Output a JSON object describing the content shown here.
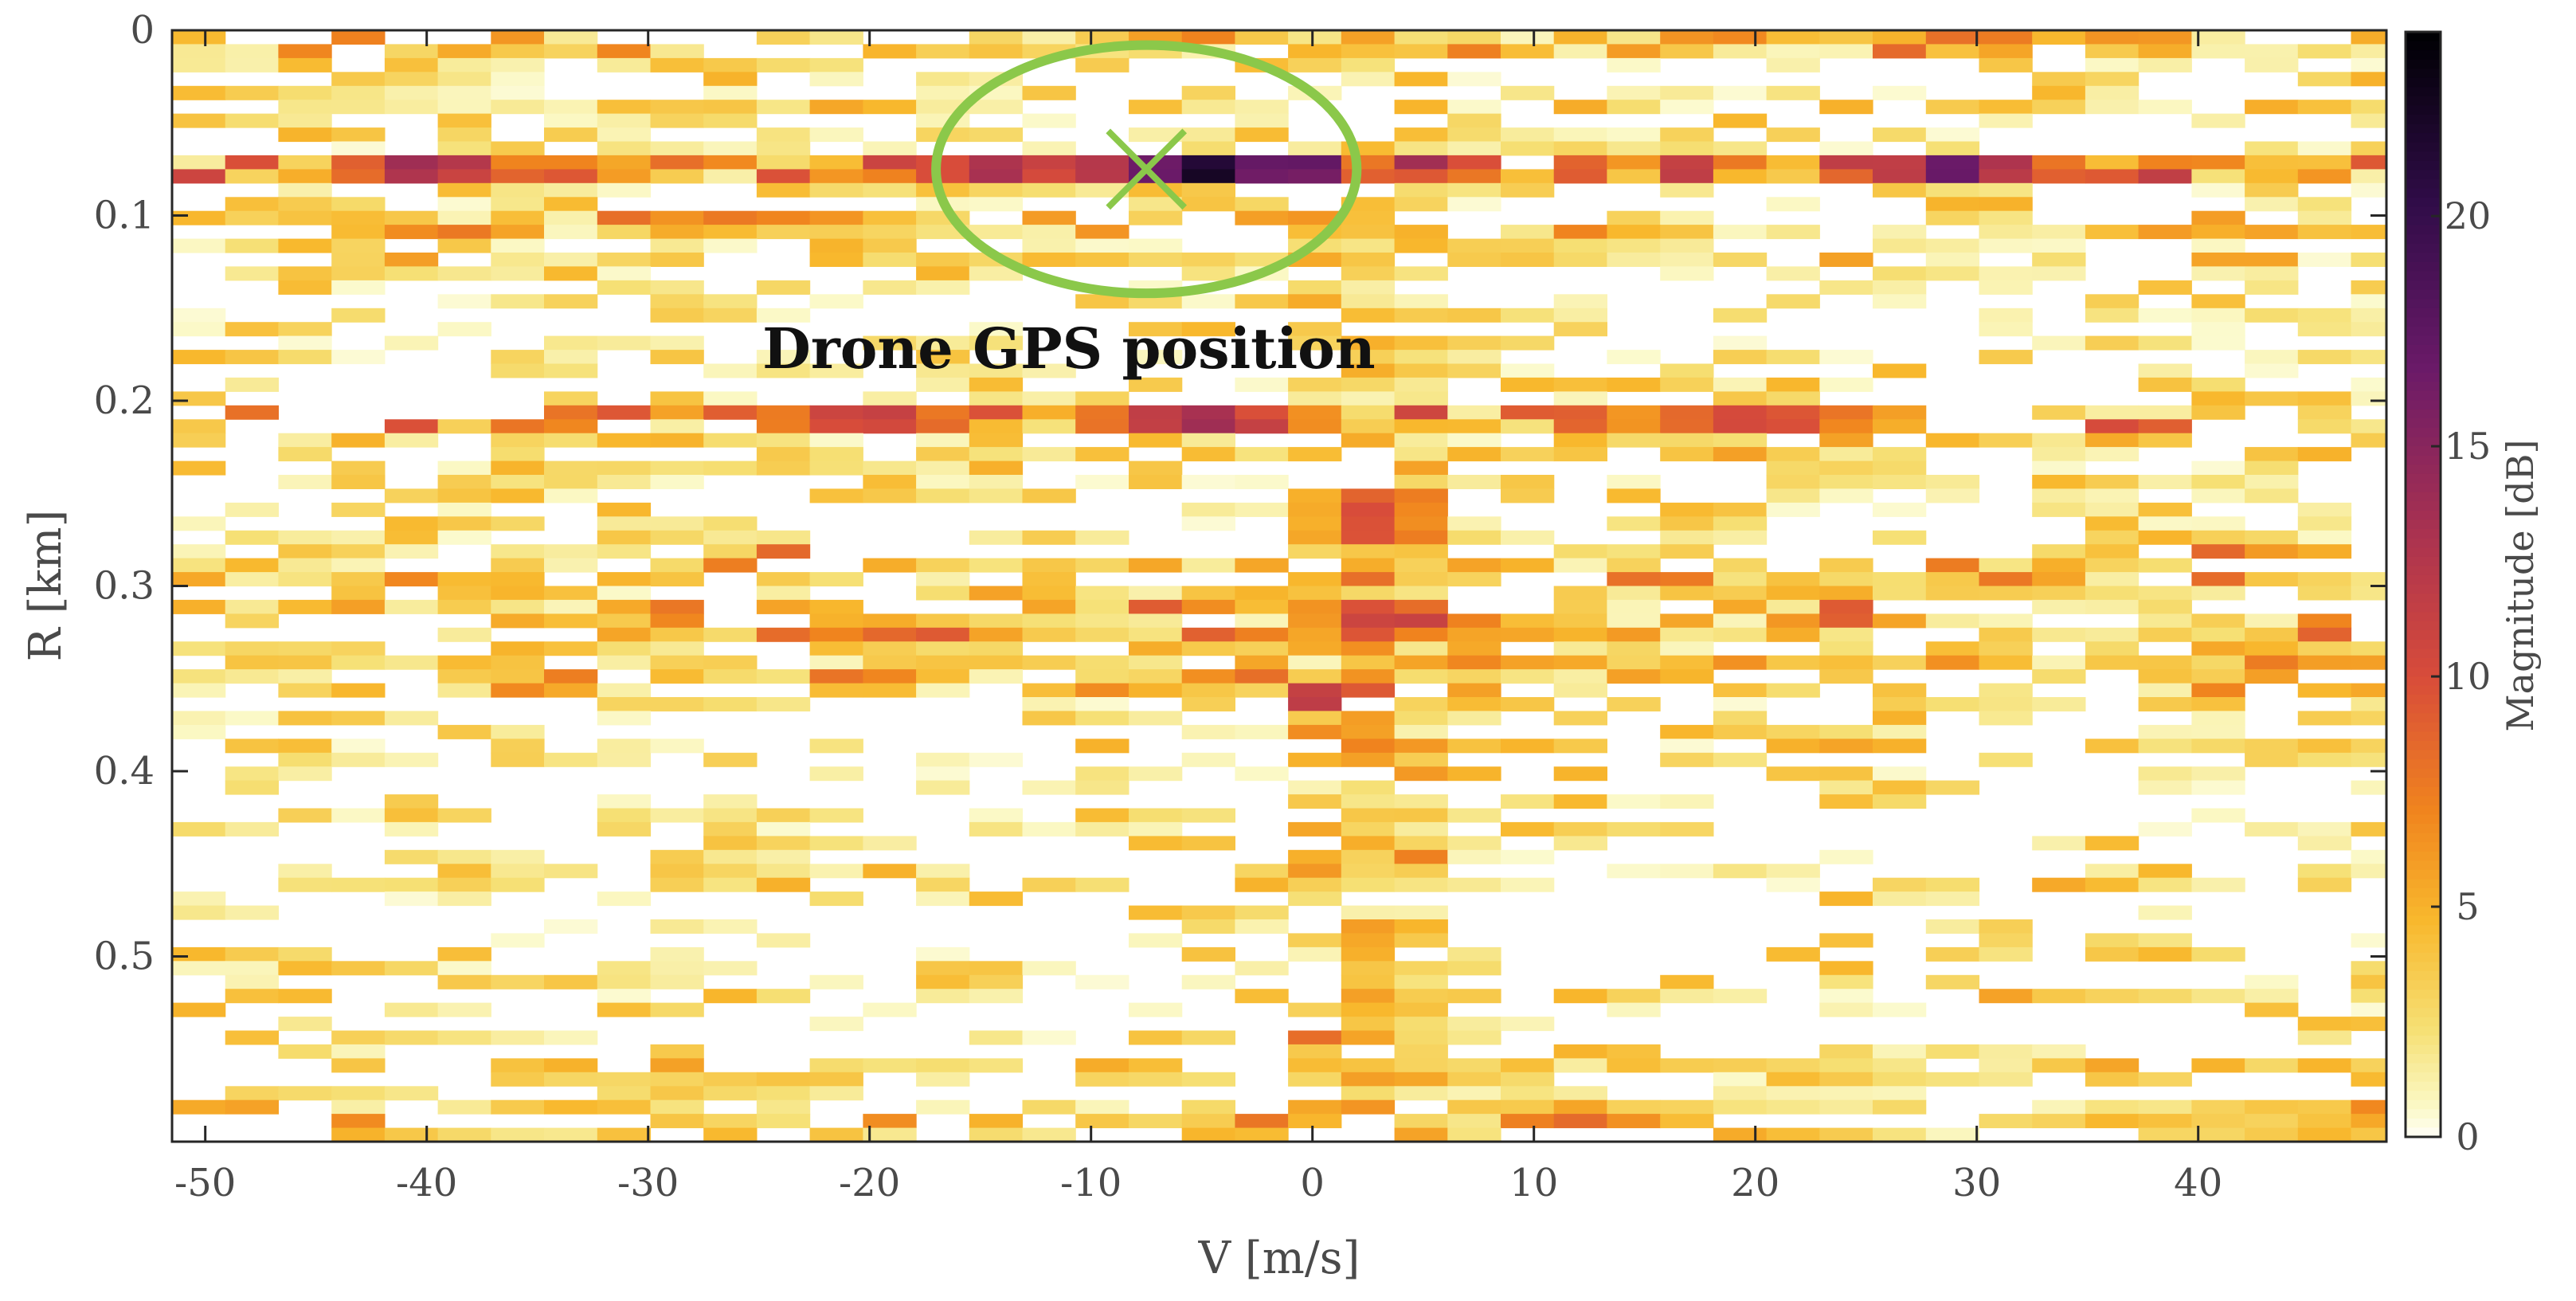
{
  "chart_data": {
    "type": "heatmap",
    "xlabel": "V [m/s]",
    "ylabel": "R [km]",
    "colorbar_label": "Magnitude [dB]",
    "xlim": [
      -51.5,
      48.5
    ],
    "ylim": [
      0,
      0.6
    ],
    "y_reversed": true,
    "clim": [
      0,
      24
    ],
    "colormap": "inferno (reversed: light yellow = low, black = high)",
    "x_ticks": [
      -50,
      -40,
      -30,
      -20,
      -10,
      0,
      10,
      20,
      30,
      40
    ],
    "x_tick_labels": [
      "-50",
      "-40",
      "-30",
      "-20",
      "-10",
      "0",
      "10",
      "20",
      "30",
      "40"
    ],
    "y_ticks": [
      0,
      0.1,
      0.2,
      0.3,
      0.4,
      0.5
    ],
    "y_tick_labels": [
      "0",
      "0.1",
      "0.2",
      "0.3",
      "0.4",
      "0.5"
    ],
    "colorbar_ticks": [
      0,
      5,
      10,
      15,
      20
    ],
    "colorbar_tick_labels": [
      "0",
      "5",
      "10",
      "15",
      "20"
    ],
    "velocity_bin_width": 2.4,
    "range_bin_height": 0.0075,
    "bright_rows": [
      {
        "range": 0.0037,
        "strength": 0.5
      },
      {
        "range": 0.075,
        "strength": 1.0
      },
      {
        "range": 0.105,
        "strength": 0.45
      },
      {
        "range": 0.21,
        "strength": 0.85
      },
      {
        "range": 0.29,
        "strength": 0.5
      },
      {
        "range": 0.32,
        "strength": 0.6
      },
      {
        "range": 0.35,
        "strength": 0.5
      },
      {
        "range": 0.585,
        "strength": 0.55
      }
    ],
    "hot_spots": [
      {
        "v": -5,
        "r": 0.075,
        "value": 24,
        "dv": 7,
        "dr": 0.006
      },
      {
        "v": -14,
        "r": 0.075,
        "value": 14,
        "dv": 7,
        "dr": 0.006
      },
      {
        "v": 0,
        "r": 0.075,
        "value": 18,
        "dv": 3,
        "dr": 0.006
      },
      {
        "v": -40,
        "r": 0.075,
        "value": 16,
        "dv": 5,
        "dr": 0.006
      },
      {
        "v": 29,
        "r": 0.075,
        "value": 18,
        "dv": 6,
        "dr": 0.006
      },
      {
        "v": -5,
        "r": 0.21,
        "value": 16,
        "dv": 6,
        "dr": 0.006
      },
      {
        "v": -20,
        "r": 0.21,
        "value": 13,
        "dv": 6,
        "dr": 0.006
      },
      {
        "v": 20,
        "r": 0.21,
        "value": 12,
        "dv": 8,
        "dr": 0.006
      },
      {
        "v": 0,
        "r": 0.36,
        "value": 13,
        "dv": 2,
        "dr": 0.006
      },
      {
        "v": 3,
        "r": 0.32,
        "value": 12,
        "dv": 4,
        "dr": 0.01
      },
      {
        "v": 3,
        "r": 0.26,
        "value": 11,
        "dv": 4,
        "dr": 0.015
      }
    ],
    "annotations": [
      {
        "type": "ellipse",
        "label": "",
        "v_center": -7.5,
        "r_center": 0.075,
        "v_radius": 9.5,
        "r_radius": 0.067,
        "color": "#8bc84a"
      },
      {
        "type": "cross",
        "label": "",
        "v": -7.5,
        "r": 0.075,
        "color": "#8bc84a"
      },
      {
        "type": "text",
        "label": "Drone GPS position",
        "v": -11,
        "r": 0.172
      }
    ]
  }
}
